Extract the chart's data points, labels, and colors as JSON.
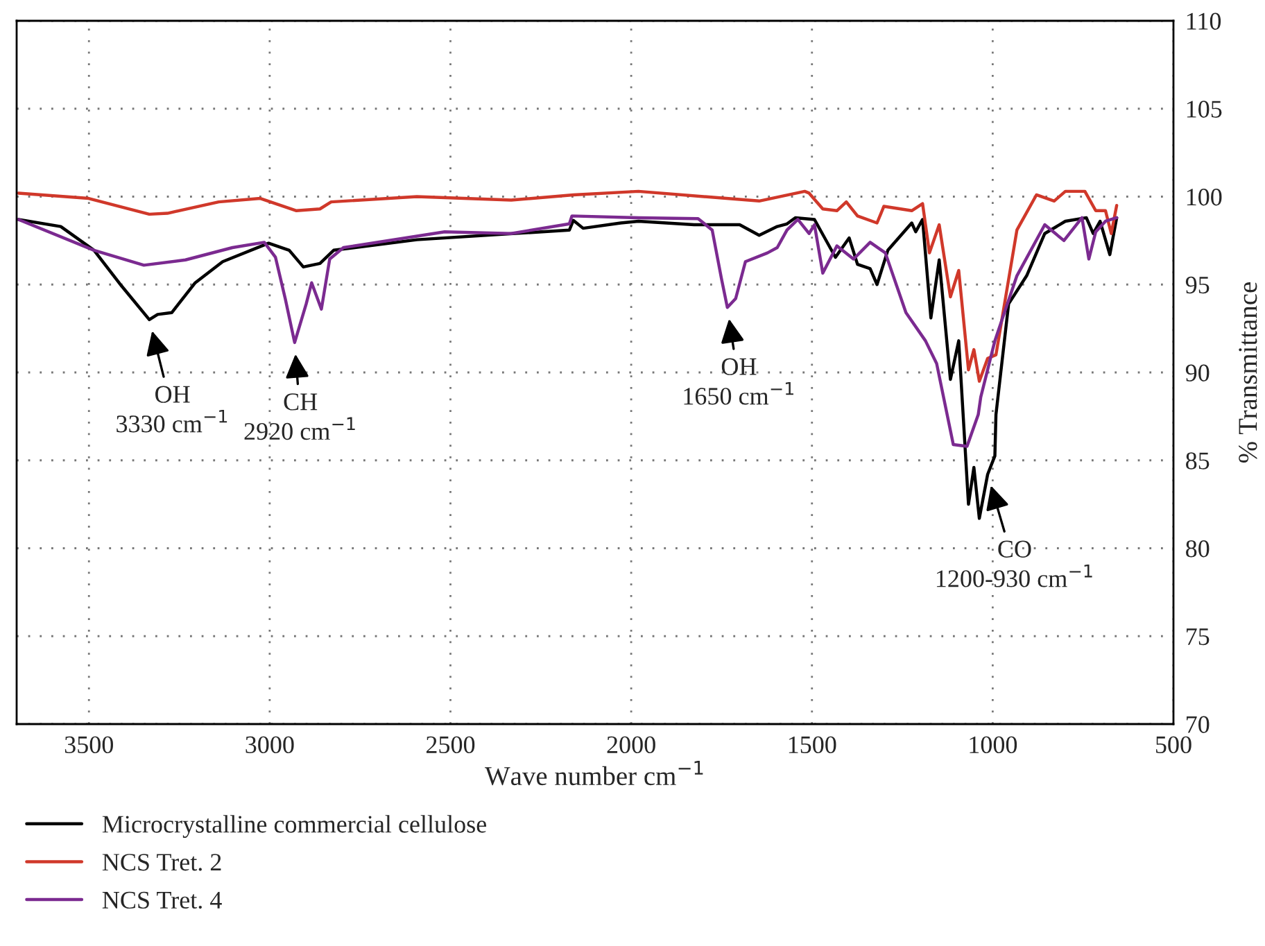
{
  "chart_data": {
    "type": "line",
    "xlabel": "Wave number cm$^{−1}$",
    "ylabel": "% Transmittance",
    "xlim": [
      3700,
      500
    ],
    "xticks": [
      3500,
      3000,
      2500,
      2000,
      1500,
      1000,
      500
    ],
    "ylim": [
      70,
      110
    ],
    "yticks": [
      70,
      75,
      80,
      85,
      90,
      95,
      100,
      105,
      110
    ],
    "grid": true,
    "legend": "bottom",
    "marker": "none",
    "line_style": "solid",
    "series": [
      {
        "name": "Microcrystalline commercial cellulose",
        "color": "#000000",
        "x": [
          3695,
          3578,
          3486,
          3409,
          3333,
          3310,
          3271,
          3206,
          3130,
          3003,
          2946,
          2907,
          2861,
          2823,
          2593,
          2171,
          2160,
          2133,
          2029,
          1980,
          1826,
          1700,
          1646,
          1596,
          1569,
          1546,
          1493,
          1435,
          1397,
          1374,
          1339,
          1320,
          1290,
          1224,
          1213,
          1194,
          1171,
          1148,
          1117,
          1094,
          1067,
          1052,
          1037,
          1014,
          994,
          991,
          956,
          906,
          856,
          799,
          741,
          722,
          703,
          676,
          657
        ],
        "values": [
          98.7,
          98.3,
          96.95,
          94.9,
          93.0,
          93.3,
          93.4,
          95.1,
          96.3,
          97.35,
          96.95,
          96.0,
          96.2,
          96.95,
          97.55,
          98.1,
          98.65,
          98.2,
          98.5,
          98.6,
          98.4,
          98.4,
          97.8,
          98.3,
          98.45,
          98.8,
          98.7,
          96.55,
          97.65,
          96.15,
          95.9,
          95.0,
          96.95,
          98.5,
          98.0,
          98.7,
          93.1,
          96.4,
          89.6,
          91.8,
          82.5,
          84.6,
          81.7,
          84.2,
          85.25,
          87.6,
          93.9,
          95.5,
          97.9,
          98.6,
          98.8,
          97.9,
          98.6,
          96.7,
          98.8
        ]
      },
      {
        "name": "NCS Tret. 2",
        "color": "#d0382a",
        "x": [
          3695,
          3501,
          3333,
          3283,
          3141,
          3026,
          2926,
          2861,
          2830,
          2593,
          2332,
          2160,
          1980,
          1646,
          1520,
          1508,
          1470,
          1431,
          1405,
          1374,
          1320,
          1301,
          1224,
          1194,
          1175,
          1148,
          1117,
          1094,
          1067,
          1052,
          1037,
          1014,
          991,
          933,
          879,
          830,
          799,
          745,
          715,
          688,
          672,
          657
        ],
        "values": [
          100.2,
          99.9,
          99.0,
          99.05,
          99.7,
          99.9,
          99.2,
          99.3,
          99.7,
          100.0,
          99.8,
          100.1,
          100.3,
          99.75,
          100.3,
          100.2,
          99.3,
          99.2,
          99.7,
          98.9,
          98.5,
          99.45,
          99.2,
          99.6,
          96.8,
          98.4,
          94.3,
          95.8,
          90.15,
          91.3,
          89.5,
          90.8,
          91.0,
          98.1,
          100.1,
          99.75,
          100.3,
          100.3,
          99.2,
          99.2,
          97.9,
          99.5
        ]
      },
      {
        "name": "NCS Tret. 4",
        "color": "#7b2a90",
        "x": [
          3695,
          3486,
          3348,
          3233,
          3103,
          3015,
          2984,
          2957,
          2931,
          2899,
          2884,
          2857,
          2834,
          2796,
          2516,
          2332,
          2171,
          2164,
          1980,
          1815,
          1776,
          1750,
          1734,
          1711,
          1684,
          1623,
          1596,
          1569,
          1539,
          1508,
          1493,
          1470,
          1431,
          1385,
          1339,
          1297,
          1240,
          1186,
          1155,
          1109,
          1071,
          1040,
          1033,
          994,
          933,
          856,
          803,
          753,
          734,
          715,
          688,
          657
        ],
        "values": [
          98.7,
          96.95,
          96.1,
          96.4,
          97.1,
          97.4,
          96.55,
          94.2,
          91.7,
          93.9,
          95.1,
          93.6,
          96.45,
          97.1,
          98.0,
          97.9,
          98.45,
          98.9,
          98.8,
          98.75,
          98.1,
          95.3,
          93.7,
          94.2,
          96.3,
          96.8,
          97.1,
          98.1,
          98.7,
          97.9,
          98.4,
          95.65,
          97.2,
          96.45,
          97.4,
          96.8,
          93.4,
          91.8,
          90.5,
          85.9,
          85.8,
          87.6,
          88.6,
          91.8,
          95.5,
          98.4,
          97.5,
          98.8,
          96.45,
          98.0,
          98.6,
          98.8
        ]
      }
    ],
    "annotations": [
      {
        "text": "OH\n3330 cm$^{−1}$",
        "x": 3333,
        "y": 93.0
      },
      {
        "text": "CH\n2920 cm$^{−1}$",
        "x": 2931,
        "y": 91.7
      },
      {
        "text": "OH\n1650 cm$^{−1}$",
        "x": 1734,
        "y": 93.7
      },
      {
        "text": "CO\n1200-930 cm$^{−1}$",
        "x": 1014,
        "y": 84.2
      }
    ]
  }
}
